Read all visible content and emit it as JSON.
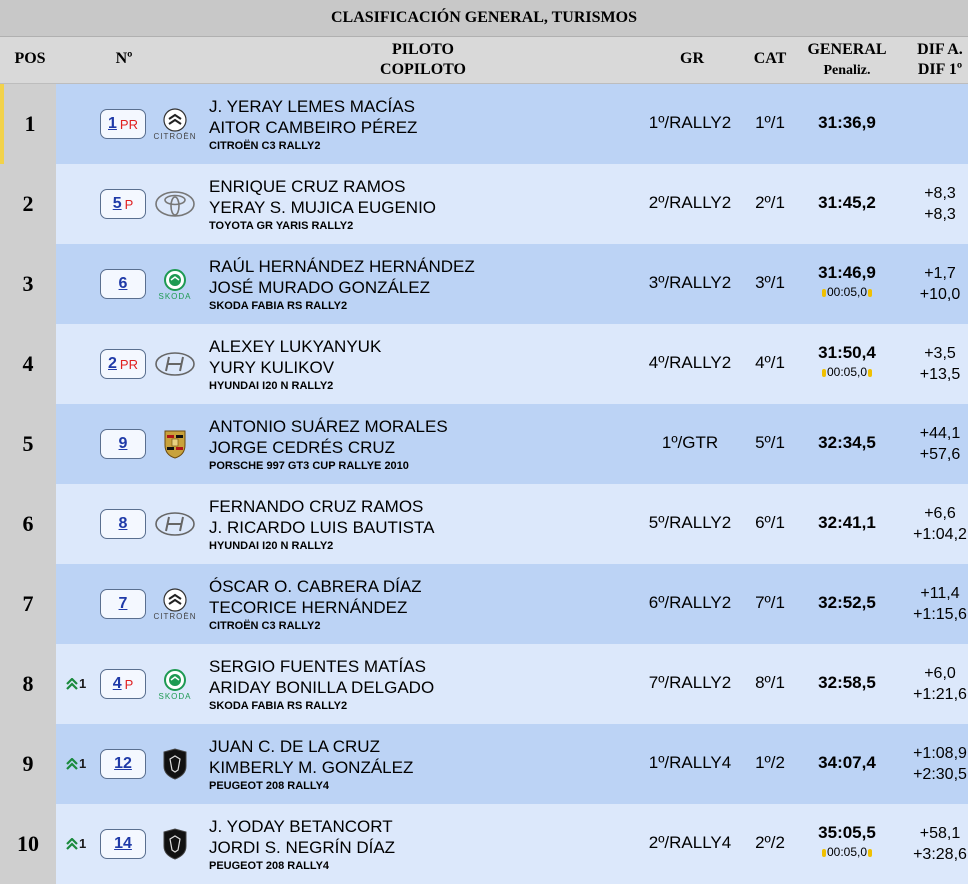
{
  "title": "CLASIFICACIÓN GENERAL, TURISMOS",
  "headers": {
    "pos": "POS",
    "num": "Nº",
    "pilot": "PILOTO",
    "copilot": "COPILOTO",
    "gr": "GR",
    "cat": "CAT",
    "general": "GENERAL",
    "penaliz": "Penaliz.",
    "dif_a": "DIF A.",
    "dif_1": "DIF 1º"
  },
  "colors": {
    "odd_row": "#bcd3f5",
    "even_row": "#dce8fb",
    "pos_cell": "#cfcfcf",
    "number": "#1f3aa8",
    "suffix": "#e02020"
  },
  "rows": [
    {
      "pos": "1",
      "gain": "",
      "num": "1",
      "suffix": "PR",
      "brand": "CITROËN",
      "logo": "citroen-logo",
      "driver": "J. YERAY LEMES MACÍAS",
      "codriver": "AITOR CAMBEIRO PÉREZ",
      "car": "CITROËN C3 RALLY2",
      "gr": "1º/RALLY2",
      "cat": "1º/1",
      "general": "31:36,9",
      "penalty": "",
      "dif_prev": "",
      "dif_first": ""
    },
    {
      "pos": "2",
      "gain": "",
      "num": "5",
      "suffix": "P",
      "brand": "",
      "logo": "toyota-logo",
      "driver": "ENRIQUE CRUZ RAMOS",
      "codriver": "YERAY S. MUJICA EUGENIO",
      "car": "TOYOTA GR YARIS RALLY2",
      "gr": "2º/RALLY2",
      "cat": "2º/1",
      "general": "31:45,2",
      "penalty": "",
      "dif_prev": "+8,3",
      "dif_first": "+8,3"
    },
    {
      "pos": "3",
      "gain": "",
      "num": "6",
      "suffix": "",
      "brand": "SKODA",
      "logo": "skoda-logo",
      "driver": "RAÚL HERNÁNDEZ HERNÁNDEZ",
      "codriver": "JOSÉ MURADO GONZÁLEZ",
      "car": "SKODA FABIA RS RALLY2",
      "gr": "3º/RALLY2",
      "cat": "3º/1",
      "general": "31:46,9",
      "penalty": "00:05,0",
      "dif_prev": "+1,7",
      "dif_first": "+10,0"
    },
    {
      "pos": "4",
      "gain": "",
      "num": "2",
      "suffix": "PR",
      "brand": "",
      "logo": "hyundai-logo",
      "driver": "ALEXEY LUKYANYUK",
      "codriver": "YURY KULIKOV",
      "car": "HYUNDAI I20 N RALLY2",
      "gr": "4º/RALLY2",
      "cat": "4º/1",
      "general": "31:50,4",
      "penalty": "00:05,0",
      "dif_prev": "+3,5",
      "dif_first": "+13,5"
    },
    {
      "pos": "5",
      "gain": "",
      "num": "9",
      "suffix": "",
      "brand": "",
      "logo": "porsche-logo",
      "driver": "ANTONIO SUÁREZ MORALES",
      "codriver": "JORGE CEDRÉS CRUZ",
      "car": "PORSCHE 997 GT3 CUP RALLYE 2010",
      "gr": "1º/GTR",
      "cat": "5º/1",
      "general": "32:34,5",
      "penalty": "",
      "dif_prev": "+44,1",
      "dif_first": "+57,6"
    },
    {
      "pos": "6",
      "gain": "",
      "num": "8",
      "suffix": "",
      "brand": "",
      "logo": "hyundai-logo",
      "driver": "FERNANDO CRUZ RAMOS",
      "codriver": "J. RICARDO LUIS BAUTISTA",
      "car": "HYUNDAI I20 N RALLY2",
      "gr": "5º/RALLY2",
      "cat": "6º/1",
      "general": "32:41,1",
      "penalty": "",
      "dif_prev": "+6,6",
      "dif_first": "+1:04,2"
    },
    {
      "pos": "7",
      "gain": "",
      "num": "7",
      "suffix": "",
      "brand": "CITROËN",
      "logo": "citroen-logo",
      "driver": "ÓSCAR O. CABRERA DÍAZ",
      "codriver": "TECORICE HERNÁNDEZ",
      "car": "CITROËN C3 RALLY2",
      "gr": "6º/RALLY2",
      "cat": "7º/1",
      "general": "32:52,5",
      "penalty": "",
      "dif_prev": "+11,4",
      "dif_first": "+1:15,6"
    },
    {
      "pos": "8",
      "gain": "1",
      "num": "4",
      "suffix": "P",
      "brand": "SKODA",
      "logo": "skoda-logo",
      "driver": "SERGIO FUENTES MATÍAS",
      "codriver": "ARIDAY BONILLA DELGADO",
      "car": "SKODA FABIA RS RALLY2",
      "gr": "7º/RALLY2",
      "cat": "8º/1",
      "general": "32:58,5",
      "penalty": "",
      "dif_prev": "+6,0",
      "dif_first": "+1:21,6"
    },
    {
      "pos": "9",
      "gain": "1",
      "num": "12",
      "suffix": "",
      "brand": "",
      "logo": "peugeot-logo",
      "driver": "JUAN C. DE LA CRUZ",
      "codriver": "KIMBERLY M. GONZÁLEZ",
      "car": "PEUGEOT 208 RALLY4",
      "gr": "1º/RALLY4",
      "cat": "1º/2",
      "general": "34:07,4",
      "penalty": "",
      "dif_prev": "+1:08,9",
      "dif_first": "+2:30,5"
    },
    {
      "pos": "10",
      "gain": "1",
      "num": "14",
      "suffix": "",
      "brand": "",
      "logo": "peugeot-logo",
      "driver": "J. YODAY BETANCORT",
      "codriver": "JORDI S. NEGRÍN DÍAZ",
      "car": "PEUGEOT 208 RALLY4",
      "gr": "2º/RALLY4",
      "cat": "2º/2",
      "general": "35:05,5",
      "penalty": "00:05,0",
      "dif_prev": "+58,1",
      "dif_first": "+3:28,6"
    }
  ]
}
